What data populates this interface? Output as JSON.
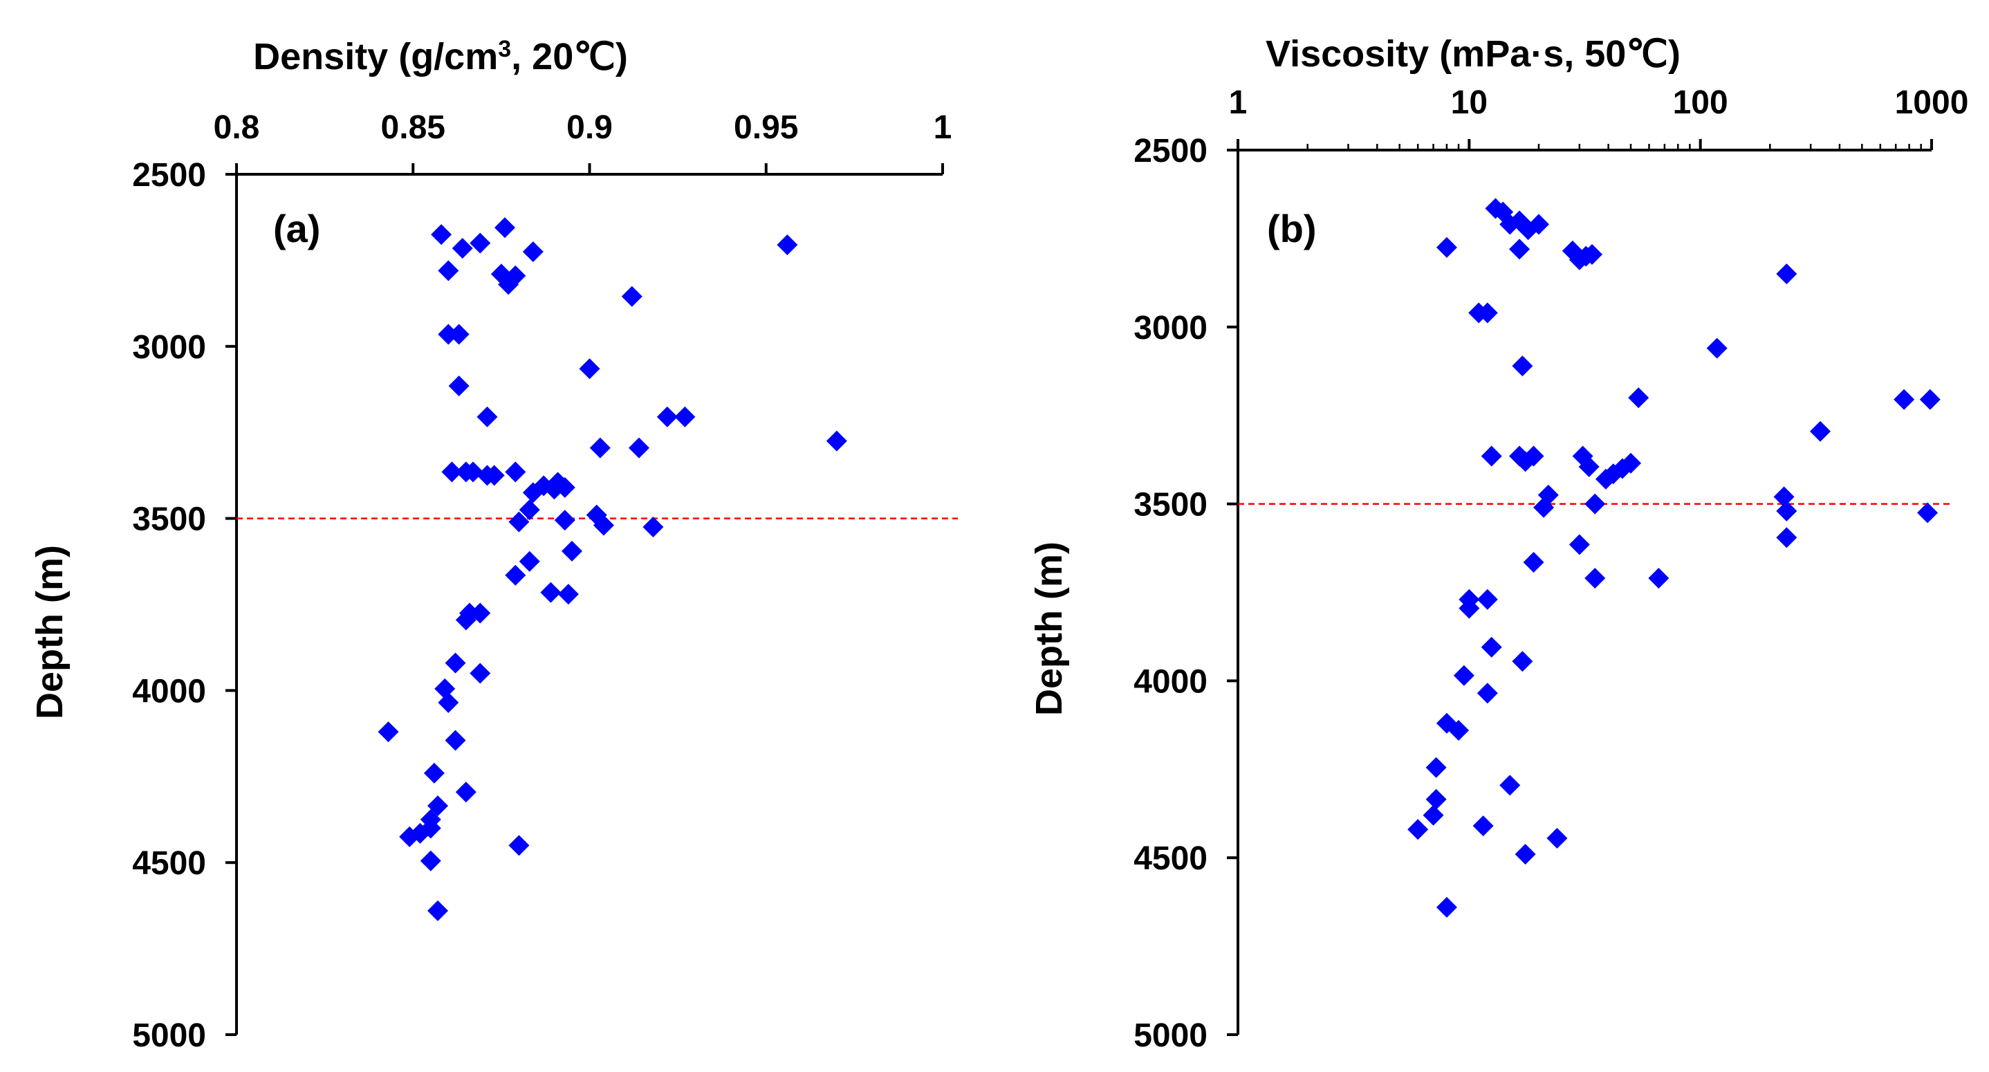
{
  "chart_data": [
    {
      "type": "scatter",
      "panel_label": "(a)",
      "title": "",
      "x_axis_title_main": "Density (g/cm",
      "x_axis_title_sup": "3",
      "x_axis_title_tail": ", 20℃)",
      "ylabel": "Depth (m)",
      "x_scale": "linear",
      "xlim": [
        0.8,
        1.0
      ],
      "ylim": [
        2500,
        5000
      ],
      "y_inverted": true,
      "x_ticks": [
        0.8,
        0.85,
        0.9,
        0.95,
        1.0
      ],
      "x_tick_labels": [
        "0.8",
        "0.85",
        "0.9",
        "0.95",
        "1"
      ],
      "y_ticks": [
        2500,
        3000,
        3500,
        4000,
        4500,
        5000
      ],
      "y_tick_labels": [
        "2500",
        "3000",
        "3500",
        "4000",
        "4500",
        "5000"
      ],
      "reference_line_depth": 3500,
      "marker": "diamond",
      "color": "#0000ff",
      "points": [
        [
          0.858,
          2675
        ],
        [
          0.864,
          2715
        ],
        [
          0.869,
          2700
        ],
        [
          0.876,
          2655
        ],
        [
          0.884,
          2725
        ],
        [
          0.956,
          2705
        ],
        [
          0.86,
          2780
        ],
        [
          0.875,
          2790
        ],
        [
          0.879,
          2795
        ],
        [
          0.877,
          2820
        ],
        [
          0.912,
          2855
        ],
        [
          0.86,
          2965
        ],
        [
          0.863,
          2965
        ],
        [
          0.9,
          3065
        ],
        [
          0.863,
          3115
        ],
        [
          0.871,
          3205
        ],
        [
          0.922,
          3205
        ],
        [
          0.927,
          3205
        ],
        [
          0.97,
          3275
        ],
        [
          0.903,
          3295
        ],
        [
          0.914,
          3295
        ],
        [
          0.861,
          3365
        ],
        [
          0.865,
          3365
        ],
        [
          0.867,
          3365
        ],
        [
          0.871,
          3375
        ],
        [
          0.873,
          3375
        ],
        [
          0.879,
          3365
        ],
        [
          0.884,
          3425
        ],
        [
          0.887,
          3405
        ],
        [
          0.891,
          3395
        ],
        [
          0.89,
          3415
        ],
        [
          0.893,
          3410
        ],
        [
          0.883,
          3475
        ],
        [
          0.88,
          3510
        ],
        [
          0.893,
          3505
        ],
        [
          0.902,
          3490
        ],
        [
          0.904,
          3520
        ],
        [
          0.918,
          3525
        ],
        [
          0.883,
          3625
        ],
        [
          0.879,
          3665
        ],
        [
          0.895,
          3595
        ],
        [
          0.889,
          3715
        ],
        [
          0.894,
          3720
        ],
        [
          0.866,
          3775
        ],
        [
          0.869,
          3775
        ],
        [
          0.865,
          3795
        ],
        [
          0.862,
          3920
        ],
        [
          0.869,
          3950
        ],
        [
          0.859,
          3995
        ],
        [
          0.86,
          4035
        ],
        [
          0.843,
          4120
        ],
        [
          0.862,
          4145
        ],
        [
          0.856,
          4240
        ],
        [
          0.865,
          4295
        ],
        [
          0.857,
          4335
        ],
        [
          0.855,
          4375
        ],
        [
          0.855,
          4400
        ],
        [
          0.852,
          4415
        ],
        [
          0.849,
          4425
        ],
        [
          0.88,
          4450
        ],
        [
          0.855,
          4495
        ],
        [
          0.857,
          4640
        ]
      ]
    },
    {
      "type": "scatter",
      "panel_label": "(b)",
      "title": "",
      "x_axis_title": "Viscosity (mPa·s, 50℃)",
      "ylabel": "Depth (m)",
      "x_scale": "log",
      "xlim": [
        1,
        1000
      ],
      "ylim": [
        2500,
        5000
      ],
      "y_inverted": true,
      "x_ticks": [
        1,
        10,
        100,
        1000
      ],
      "x_tick_labels": [
        "1",
        "10",
        "100",
        "1000"
      ],
      "y_ticks": [
        2500,
        3000,
        3500,
        4000,
        4500,
        5000
      ],
      "y_tick_labels": [
        "2500",
        "3000",
        "3500",
        "4000",
        "4500",
        "5000"
      ],
      "reference_line_depth": 3500,
      "marker": "diamond",
      "color": "#0000ff",
      "points": [
        [
          13,
          2665
        ],
        [
          14,
          2675
        ],
        [
          15,
          2710
        ],
        [
          16.5,
          2700
        ],
        [
          18,
          2725
        ],
        [
          20,
          2710
        ],
        [
          8,
          2775
        ],
        [
          16.5,
          2780
        ],
        [
          28,
          2785
        ],
        [
          32,
          2800
        ],
        [
          34,
          2795
        ],
        [
          30,
          2810
        ],
        [
          236,
          2850
        ],
        [
          11,
          2960
        ],
        [
          12,
          2960
        ],
        [
          118,
          3060
        ],
        [
          17,
          3110
        ],
        [
          54,
          3200
        ],
        [
          760,
          3205
        ],
        [
          985,
          3205
        ],
        [
          330,
          3295
        ],
        [
          12.5,
          3365
        ],
        [
          16.5,
          3365
        ],
        [
          17.5,
          3380
        ],
        [
          19,
          3365
        ],
        [
          31,
          3365
        ],
        [
          33,
          3395
        ],
        [
          50,
          3385
        ],
        [
          46,
          3400
        ],
        [
          42,
          3415
        ],
        [
          39,
          3430
        ],
        [
          22,
          3475
        ],
        [
          21,
          3510
        ],
        [
          35,
          3500
        ],
        [
          230,
          3480
        ],
        [
          236,
          3520
        ],
        [
          960,
          3525
        ],
        [
          236,
          3595
        ],
        [
          30,
          3615
        ],
        [
          19,
          3665
        ],
        [
          35,
          3710
        ],
        [
          66,
          3710
        ],
        [
          10,
          3770
        ],
        [
          12,
          3770
        ],
        [
          10,
          3795
        ],
        [
          12.5,
          3905
        ],
        [
          17,
          3945
        ],
        [
          9.5,
          3985
        ],
        [
          12,
          4035
        ],
        [
          8,
          4120
        ],
        [
          9,
          4140
        ],
        [
          7.2,
          4245
        ],
        [
          15,
          4295
        ],
        [
          7.2,
          4335
        ],
        [
          7,
          4380
        ],
        [
          6,
          4420
        ],
        [
          11.5,
          4410
        ],
        [
          24,
          4445
        ],
        [
          17.5,
          4490
        ],
        [
          8,
          4640
        ]
      ]
    }
  ]
}
